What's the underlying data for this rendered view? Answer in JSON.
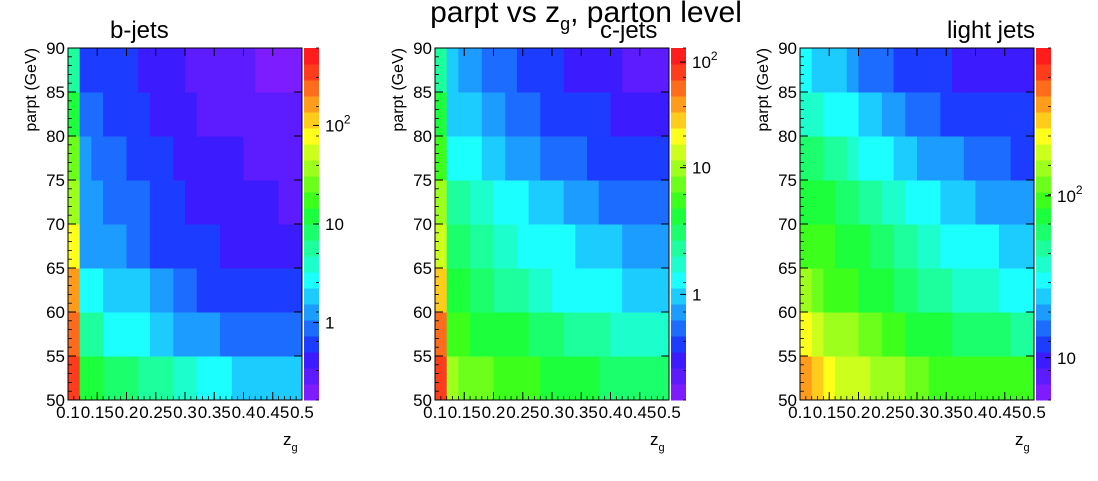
{
  "figure": {
    "title_main": "parpt vs z",
    "title_sub": "g",
    "title_tail": ", parton level"
  },
  "palette": {
    "rainbow": [
      "#7c1cff",
      "#5c1cff",
      "#3c1cff",
      "#1c3cff",
      "#1c6cff",
      "#1c9cff",
      "#1cccff",
      "#1cffff",
      "#1cffcc",
      "#1cff9c",
      "#1cff6c",
      "#1cff3c",
      "#3cff1c",
      "#6cff1c",
      "#9cff1c",
      "#ccff1c",
      "#ffff1c",
      "#ffcc1c",
      "#ff9c1c",
      "#ff6c1c",
      "#ff3c1c",
      "#ff1c1c"
    ]
  },
  "chart_data": [
    {
      "type": "heatmap",
      "title": "b-jets",
      "xlabel": "z",
      "xlabel_sub": "g",
      "ylabel": "parpt (GeV)",
      "xlim": [
        0.1,
        0.5
      ],
      "ylim": [
        50,
        90
      ],
      "x_ticks": [
        "0.1",
        "0.15",
        "0.2",
        "0.25",
        "0.3",
        "0.35",
        "0.4",
        "0.45",
        "0.5"
      ],
      "y_ticks": [
        "50",
        "55",
        "60",
        "65",
        "70",
        "75",
        "80",
        "85",
        "90"
      ],
      "colorbar": {
        "scale": "log",
        "ticks": [
          {
            "label": "1",
            "sup": "",
            "level": 0.22
          },
          {
            "label": "10",
            "sup": "",
            "level": 0.5
          },
          {
            "label": "10",
            "sup": "2",
            "level": 0.78
          }
        ]
      },
      "z_levels": [
        [
          0.95,
          0.52,
          0.5,
          0.48,
          0.46,
          0.46,
          0.45,
          0.42,
          0.42,
          0.38,
          0.38,
          0.36,
          0.34,
          0.32,
          0.3,
          0.3,
          0.28,
          0.28,
          0.28,
          0.28
        ],
        [
          0.9,
          0.44,
          0.42,
          0.36,
          0.36,
          0.35,
          0.35,
          0.3,
          0.3,
          0.25,
          0.25,
          0.23,
          0.25,
          0.22,
          0.22,
          0.22,
          0.2,
          0.2,
          0.2,
          0.2
        ],
        [
          0.82,
          0.34,
          0.33,
          0.3,
          0.3,
          0.28,
          0.28,
          0.24,
          0.24,
          0.2,
          0.2,
          0.18,
          0.18,
          0.17,
          0.17,
          0.16,
          0.15,
          0.15,
          0.14,
          0.14
        ],
        [
          0.75,
          0.26,
          0.25,
          0.23,
          0.23,
          0.2,
          0.2,
          0.18,
          0.18,
          0.16,
          0.16,
          0.14,
          0.14,
          0.13,
          0.13,
          0.12,
          0.12,
          0.1,
          0.12,
          0.1
        ],
        [
          0.68,
          0.26,
          0.24,
          0.22,
          0.22,
          0.2,
          0.2,
          0.17,
          0.17,
          0.15,
          0.13,
          0.13,
          0.12,
          0.12,
          0.12,
          0.1,
          0.1,
          0.1,
          0.08,
          0.08
        ],
        [
          0.6,
          0.24,
          0.22,
          0.2,
          0.2,
          0.18,
          0.18,
          0.16,
          0.14,
          0.13,
          0.12,
          0.12,
          0.1,
          0.1,
          0.1,
          0.08,
          0.08,
          0.07,
          0.07,
          0.07
        ],
        [
          0.52,
          0.2,
          0.2,
          0.18,
          0.16,
          0.15,
          0.14,
          0.12,
          0.12,
          0.1,
          0.1,
          0.08,
          0.08,
          0.08,
          0.07,
          0.06,
          0.06,
          0.05,
          0.05,
          0.05
        ],
        [
          0.45,
          0.18,
          0.18,
          0.16,
          0.15,
          0.14,
          0.12,
          0.12,
          0.1,
          0.1,
          0.08,
          0.07,
          0.07,
          0.06,
          0.06,
          0.05,
          0.04,
          0.04,
          0.04,
          0.04
        ]
      ]
    },
    {
      "type": "heatmap",
      "title": "c-jets",
      "xlabel": "z",
      "xlabel_sub": "g",
      "ylabel": "parpt (GeV)",
      "xlim": [
        0.1,
        0.5
      ],
      "ylim": [
        50,
        90
      ],
      "x_ticks": [
        "0.1",
        "0.15",
        "0.2",
        "0.25",
        "0.3",
        "0.35",
        "0.4",
        "0.45",
        "0.5"
      ],
      "y_ticks": [
        "50",
        "55",
        "60",
        "65",
        "70",
        "75",
        "80",
        "85",
        "90"
      ],
      "colorbar": {
        "scale": "log",
        "ticks": [
          {
            "label": "1",
            "sup": "",
            "level": 0.3
          },
          {
            "label": "10",
            "sup": "",
            "level": 0.66
          },
          {
            "label": "10",
            "sup": "2",
            "level": 0.96
          }
        ]
      },
      "z_levels": [
        [
          0.95,
          0.64,
          0.62,
          0.6,
          0.6,
          0.58,
          0.58,
          0.55,
          0.55,
          0.52,
          0.52,
          0.5,
          0.5,
          0.5,
          0.48,
          0.48,
          0.46,
          0.46,
          0.46,
          0.46
        ],
        [
          0.88,
          0.56,
          0.56,
          0.54,
          0.54,
          0.52,
          0.52,
          0.5,
          0.48,
          0.46,
          0.46,
          0.44,
          0.44,
          0.42,
          0.42,
          0.4,
          0.4,
          0.38,
          0.38,
          0.38
        ],
        [
          0.8,
          0.52,
          0.5,
          0.48,
          0.46,
          0.44,
          0.44,
          0.42,
          0.4,
          0.38,
          0.36,
          0.36,
          0.34,
          0.34,
          0.32,
          0.32,
          0.3,
          0.3,
          0.3,
          0.3
        ],
        [
          0.72,
          0.48,
          0.46,
          0.44,
          0.42,
          0.4,
          0.38,
          0.36,
          0.36,
          0.34,
          0.34,
          0.32,
          0.3,
          0.3,
          0.28,
          0.28,
          0.26,
          0.26,
          0.26,
          0.26
        ],
        [
          0.65,
          0.44,
          0.42,
          0.38,
          0.38,
          0.34,
          0.34,
          0.32,
          0.3,
          0.28,
          0.28,
          0.26,
          0.26,
          0.24,
          0.22,
          0.22,
          0.22,
          0.2,
          0.2,
          0.2
        ],
        [
          0.58,
          0.36,
          0.34,
          0.32,
          0.3,
          0.28,
          0.26,
          0.26,
          0.24,
          0.22,
          0.22,
          0.2,
          0.2,
          0.18,
          0.18,
          0.16,
          0.16,
          0.14,
          0.14,
          0.14
        ],
        [
          0.5,
          0.3,
          0.28,
          0.28,
          0.24,
          0.24,
          0.22,
          0.2,
          0.2,
          0.18,
          0.18,
          0.16,
          0.16,
          0.14,
          0.14,
          0.12,
          0.12,
          0.12,
          0.1,
          0.1
        ],
        [
          0.42,
          0.28,
          0.26,
          0.24,
          0.22,
          0.2,
          0.2,
          0.18,
          0.16,
          0.16,
          0.14,
          0.12,
          0.12,
          0.1,
          0.1,
          0.1,
          0.08,
          0.08,
          0.08,
          0.08
        ]
      ]
    },
    {
      "type": "heatmap",
      "title": "light jets",
      "xlabel": "z",
      "xlabel_sub": "g",
      "ylabel": "parpt (GeV)",
      "xlim": [
        0.1,
        0.5
      ],
      "ylim": [
        50,
        90
      ],
      "x_ticks": [
        "0.1",
        "0.15",
        "0.2",
        "0.25",
        "0.3",
        "0.35",
        "0.4",
        "0.45",
        "0.5"
      ],
      "y_ticks": [
        "50",
        "55",
        "60",
        "65",
        "70",
        "75",
        "80",
        "85",
        "90"
      ],
      "colorbar": {
        "scale": "log",
        "ticks": [
          {
            "label": "10",
            "sup": "",
            "level": 0.12
          },
          {
            "label": "10",
            "sup": "2",
            "level": 0.58
          }
        ]
      },
      "z_levels": [
        [
          0.82,
          0.8,
          0.74,
          0.72,
          0.72,
          0.7,
          0.66,
          0.64,
          0.64,
          0.6,
          0.6,
          0.58,
          0.58,
          0.56,
          0.56,
          0.55,
          0.55,
          0.55,
          0.55,
          0.55
        ],
        [
          0.74,
          0.72,
          0.68,
          0.66,
          0.66,
          0.62,
          0.6,
          0.58,
          0.56,
          0.54,
          0.52,
          0.5,
          0.5,
          0.48,
          0.48,
          0.46,
          0.46,
          0.46,
          0.44,
          0.44
        ],
        [
          0.64,
          0.6,
          0.58,
          0.56,
          0.56,
          0.54,
          0.52,
          0.5,
          0.48,
          0.46,
          0.44,
          0.42,
          0.42,
          0.4,
          0.4,
          0.38,
          0.38,
          0.36,
          0.36,
          0.36
        ],
        [
          0.58,
          0.58,
          0.56,
          0.54,
          0.52,
          0.5,
          0.48,
          0.46,
          0.44,
          0.42,
          0.4,
          0.38,
          0.36,
          0.35,
          0.35,
          0.32,
          0.32,
          0.3,
          0.3,
          0.3
        ],
        [
          0.54,
          0.52,
          0.5,
          0.48,
          0.46,
          0.44,
          0.42,
          0.4,
          0.38,
          0.36,
          0.34,
          0.34,
          0.3,
          0.3,
          0.28,
          0.26,
          0.26,
          0.25,
          0.24,
          0.24
        ],
        [
          0.46,
          0.46,
          0.44,
          0.42,
          0.4,
          0.36,
          0.34,
          0.32,
          0.3,
          0.28,
          0.26,
          0.26,
          0.24,
          0.24,
          0.22,
          0.2,
          0.2,
          0.2,
          0.18,
          0.18
        ],
        [
          0.4,
          0.38,
          0.36,
          0.34,
          0.32,
          0.3,
          0.28,
          0.26,
          0.24,
          0.22,
          0.2,
          0.2,
          0.18,
          0.18,
          0.16,
          0.16,
          0.14,
          0.14,
          0.14,
          0.14
        ],
        [
          0.32,
          0.3,
          0.28,
          0.28,
          0.24,
          0.22,
          0.22,
          0.2,
          0.18,
          0.16,
          0.16,
          0.14,
          0.14,
          0.12,
          0.12,
          0.1,
          0.1,
          0.1,
          0.1,
          0.1
        ]
      ]
    }
  ]
}
